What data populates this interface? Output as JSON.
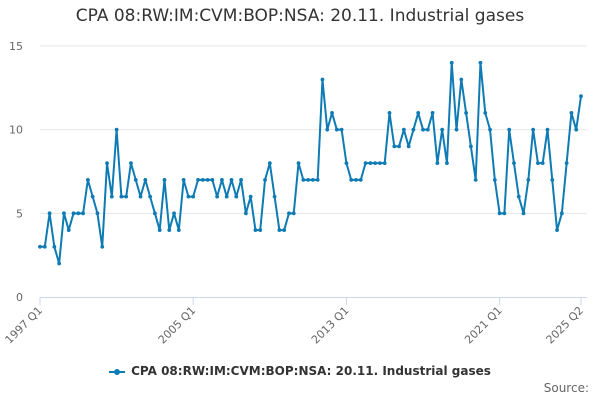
{
  "chart_data": {
    "type": "line",
    "title": "CPA 08:RW:IM:CVM:BOP:NSA: 20.11. Industrial gases",
    "xlabel": "",
    "ylabel": "",
    "ylim": [
      0,
      15
    ],
    "yticks": [
      0,
      5,
      10,
      15
    ],
    "x_start": "1997 Q1",
    "xticks": [
      "1997 Q1",
      "2005 Q1",
      "2013 Q1",
      "2021 Q1",
      "2025 Q2"
    ],
    "grid": true,
    "legend_position": "bottom",
    "series": [
      {
        "name": "CPA 08:RW:IM:CVM:BOP:NSA: 20.11. Industrial gases",
        "color": "#0e7bb4",
        "values": [
          3,
          3,
          5,
          3,
          2,
          5,
          4,
          5,
          5,
          5,
          7,
          6,
          5,
          3,
          8,
          6,
          10,
          6,
          6,
          8,
          7,
          6,
          7,
          6,
          5,
          4,
          7,
          4,
          5,
          4,
          7,
          6,
          6,
          7,
          7,
          7,
          7,
          6,
          7,
          6,
          7,
          6,
          7,
          5,
          6,
          4,
          4,
          7,
          8,
          6,
          4,
          4,
          5,
          5,
          8,
          7,
          7,
          7,
          7,
          13,
          10,
          11,
          10,
          10,
          8,
          7,
          7,
          7,
          8,
          8,
          8,
          8,
          8,
          11,
          9,
          9,
          10,
          9,
          10,
          11,
          10,
          10,
          11,
          8,
          10,
          8,
          14,
          10,
          13,
          11,
          9,
          7,
          14,
          11,
          10,
          7,
          5,
          5,
          10,
          8,
          6,
          5,
          7,
          10,
          8,
          8,
          10,
          7,
          4,
          5,
          8,
          11,
          10,
          12
        ]
      }
    ]
  },
  "credits": "Source:"
}
